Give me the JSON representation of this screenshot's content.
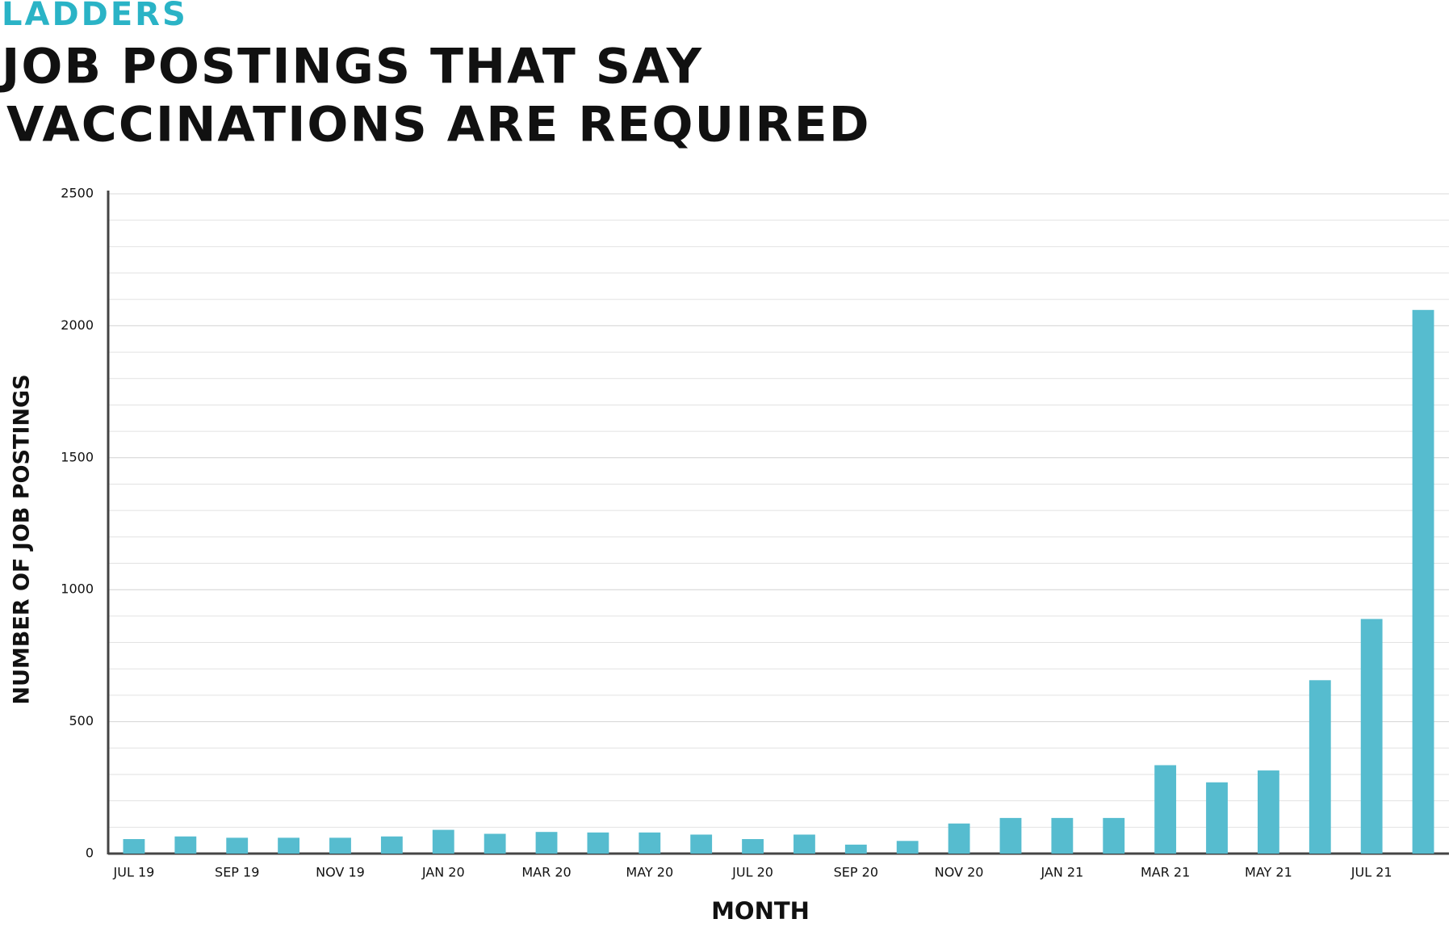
{
  "brand": "LADDERS",
  "chart_data": {
    "type": "bar",
    "title_lines": [
      "JOB POSTINGS THAT SAY",
      "VACCINATIONS ARE REQUIRED"
    ],
    "x_label": "MONTH",
    "y_label": "NUMBER OF JOB POSTINGS",
    "categories": [
      "JUL 19",
      null,
      "SEP 19",
      null,
      "NOV 19",
      null,
      "JAN 20",
      null,
      "MAR 20",
      null,
      "MAY 20",
      null,
      "JUL 20",
      null,
      "SEP 20",
      null,
      "NOV 20",
      null,
      "JAN 21",
      null,
      "MAR 21",
      null,
      "MAY 21",
      null,
      "JUL 21",
      null
    ],
    "values": [
      55,
      65,
      60,
      60,
      60,
      65,
      90,
      75,
      82,
      80,
      80,
      72,
      55,
      72,
      34,
      48,
      114,
      135,
      135,
      135,
      335,
      270,
      315,
      657,
      889,
      2060
    ],
    "color": "#56bccf",
    "ylim": [
      0,
      2500
    ],
    "yticks": [
      0,
      500,
      1000,
      1500,
      2000,
      2500
    ],
    "grid": true,
    "minor_grid_step": 100
  }
}
